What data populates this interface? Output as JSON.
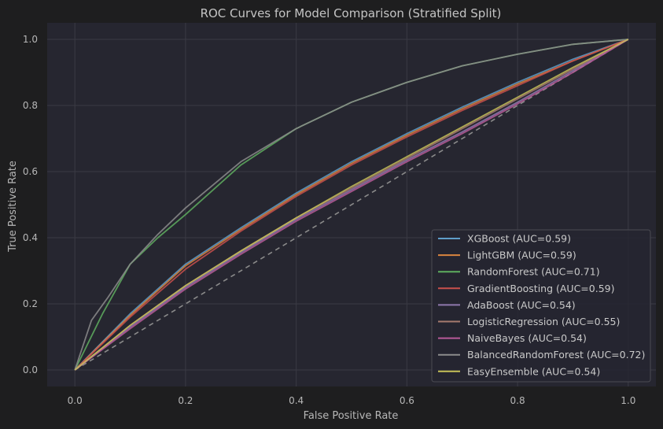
{
  "chart_data": {
    "type": "line",
    "title": "ROC Curves for Model Comparison (Stratified Split)",
    "xlabel": "False Positive Rate",
    "ylabel": "True Positive Rate",
    "xlim": [
      -0.05,
      1.05
    ],
    "ylim": [
      -0.05,
      1.05
    ],
    "xticks": [
      "0.0",
      "0.2",
      "0.4",
      "0.6",
      "0.8",
      "1.0"
    ],
    "yticks": [
      "0.0",
      "0.2",
      "0.4",
      "0.6",
      "0.8",
      "1.0"
    ],
    "grid": true,
    "legend_position": "bottom-right",
    "diagonal_reference": true,
    "series": [
      {
        "name": "XGBoost (AUC=0.59)",
        "color": "#5f9ec9",
        "x": [
          0,
          0.1,
          0.2,
          0.3,
          0.4,
          0.5,
          0.6,
          0.7,
          0.8,
          0.9,
          1.0
        ],
        "y": [
          0,
          0.17,
          0.32,
          0.43,
          0.535,
          0.63,
          0.715,
          0.795,
          0.87,
          0.94,
          1.0
        ]
      },
      {
        "name": "LightGBM (AUC=0.59)",
        "color": "#d9853f",
        "x": [
          0,
          0.1,
          0.2,
          0.3,
          0.4,
          0.5,
          0.6,
          0.7,
          0.8,
          0.9,
          1.0
        ],
        "y": [
          0,
          0.165,
          0.315,
          0.425,
          0.53,
          0.625,
          0.71,
          0.79,
          0.865,
          0.935,
          1.0
        ]
      },
      {
        "name": "RandomForest (AUC=0.71)",
        "color": "#5fae5f",
        "x": [
          0,
          0.05,
          0.1,
          0.15,
          0.2,
          0.3,
          0.4,
          0.5,
          0.6,
          0.7,
          0.8,
          0.9,
          1.0
        ],
        "y": [
          0,
          0.17,
          0.32,
          0.4,
          0.47,
          0.62,
          0.73,
          0.81,
          0.87,
          0.92,
          0.955,
          0.985,
          1.0
        ]
      },
      {
        "name": "GradientBoosting (AUC=0.59)",
        "color": "#c9504c",
        "x": [
          0,
          0.1,
          0.2,
          0.3,
          0.4,
          0.5,
          0.6,
          0.7,
          0.8,
          0.9,
          1.0
        ],
        "y": [
          0,
          0.16,
          0.305,
          0.42,
          0.525,
          0.62,
          0.705,
          0.785,
          0.86,
          0.935,
          1.0
        ]
      },
      {
        "name": "AdaBoost (AUC=0.54)",
        "color": "#8f78ad",
        "x": [
          0,
          0.1,
          0.2,
          0.3,
          0.4,
          0.5,
          0.6,
          0.7,
          0.8,
          0.9,
          1.0
        ],
        "y": [
          0,
          0.13,
          0.25,
          0.355,
          0.455,
          0.545,
          0.635,
          0.72,
          0.81,
          0.905,
          1.0
        ]
      },
      {
        "name": "LogisticRegression (AUC=0.55)",
        "color": "#a67a6e",
        "x": [
          0,
          0.1,
          0.2,
          0.3,
          0.4,
          0.5,
          0.6,
          0.7,
          0.8,
          0.9,
          1.0
        ],
        "y": [
          0,
          0.135,
          0.255,
          0.36,
          0.46,
          0.55,
          0.64,
          0.73,
          0.82,
          0.91,
          1.0
        ]
      },
      {
        "name": "NaiveBayes (AUC=0.54)",
        "color": "#b85a98",
        "x": [
          0,
          0.1,
          0.2,
          0.3,
          0.4,
          0.5,
          0.6,
          0.7,
          0.8,
          0.9,
          1.0
        ],
        "y": [
          0,
          0.125,
          0.245,
          0.35,
          0.45,
          0.54,
          0.63,
          0.715,
          0.805,
          0.9,
          1.0
        ]
      },
      {
        "name": "BalancedRandomForest (AUC=0.72)",
        "color": "#8c8c8c",
        "x": [
          0,
          0.03,
          0.06,
          0.1,
          0.15,
          0.2,
          0.3,
          0.4,
          0.5,
          0.6,
          0.7,
          0.8,
          0.9,
          1.0
        ],
        "y": [
          0,
          0.15,
          0.22,
          0.32,
          0.41,
          0.49,
          0.63,
          0.73,
          0.81,
          0.87,
          0.92,
          0.955,
          0.985,
          1.0
        ]
      },
      {
        "name": "EasyEnsemble (AUC=0.54)",
        "color": "#c6c158",
        "x": [
          0,
          0.1,
          0.2,
          0.3,
          0.4,
          0.5,
          0.6,
          0.7,
          0.8,
          0.9,
          1.0
        ],
        "y": [
          0,
          0.135,
          0.255,
          0.36,
          0.46,
          0.555,
          0.645,
          0.735,
          0.825,
          0.915,
          1.0
        ]
      }
    ]
  }
}
